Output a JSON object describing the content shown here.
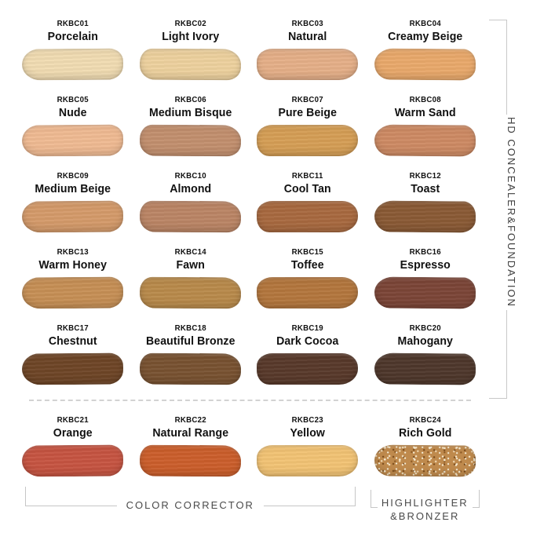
{
  "page": {
    "background": "#ffffff"
  },
  "shades": [
    {
      "code": "RKBC01",
      "name": "Porcelain",
      "color": "#f1dcb2"
    },
    {
      "code": "RKBC02",
      "name": "Light Ivory",
      "color": "#edd19e"
    },
    {
      "code": "RKBC03",
      "name": "Natural",
      "color": "#e5af88"
    },
    {
      "code": "RKBC04",
      "name": "Creamy Beige",
      "color": "#e9a96b"
    },
    {
      "code": "RKBC05",
      "name": "Nude",
      "color": "#efba92"
    },
    {
      "code": "RKBC06",
      "name": "Medium Bisque",
      "color": "#c28f6e"
    },
    {
      "code": "RKBC07",
      "name": "Pure Beige",
      "color": "#d59e55"
    },
    {
      "code": "RKBC08",
      "name": "Warm Sand",
      "color": "#cd8a63"
    },
    {
      "code": "RKBC09",
      "name": "Medium Beige",
      "color": "#d49a6a"
    },
    {
      "code": "RKBC10",
      "name": "Almond",
      "color": "#bb8565"
    },
    {
      "code": "RKBC11",
      "name": "Cool Tan",
      "color": "#a8693f"
    },
    {
      "code": "RKBC12",
      "name": "Toast",
      "color": "#8a5a35"
    },
    {
      "code": "RKBC13",
      "name": "Warm Honey",
      "color": "#c68f55"
    },
    {
      "code": "RKBC14",
      "name": "Fawn",
      "color": "#b88a4b"
    },
    {
      "code": "RKBC15",
      "name": "Toffee",
      "color": "#b3763d"
    },
    {
      "code": "RKBC16",
      "name": "Espresso",
      "color": "#7b4537"
    },
    {
      "code": "RKBC17",
      "name": "Chestnut",
      "color": "#6e4526"
    },
    {
      "code": "RKBC18",
      "name": "Beautiful Bronze",
      "color": "#785231"
    },
    {
      "code": "RKBC19",
      "name": "Dark Cocoa",
      "color": "#58392a"
    },
    {
      "code": "RKBC20",
      "name": "Mahogany",
      "color": "#4e372b"
    },
    {
      "code": "RKBC21",
      "name": "Orange",
      "color": "#c65441"
    },
    {
      "code": "RKBC22",
      "name": "Natural Range",
      "color": "#cb5e2b"
    },
    {
      "code": "RKBC23",
      "name": "Yellow",
      "color": "#f2c374"
    },
    {
      "code": "RKBC24",
      "name": "Rich Gold",
      "color": "#bf8a4d",
      "glitter": true
    }
  ],
  "annotations": {
    "right_bracket_label": "HD CONCEALER&FOUNDATION",
    "color_corrector_label": "COLOR CORRECTOR",
    "highlighter_label_line1": "HIGHLIGHTER",
    "highlighter_label_line2": "&BRONZER"
  },
  "colors": {
    "bracket_line": "#c8c8c8",
    "annotation_text": "#4a4a4a",
    "shade_text": "#111111",
    "divider": "#d2d2d2"
  }
}
